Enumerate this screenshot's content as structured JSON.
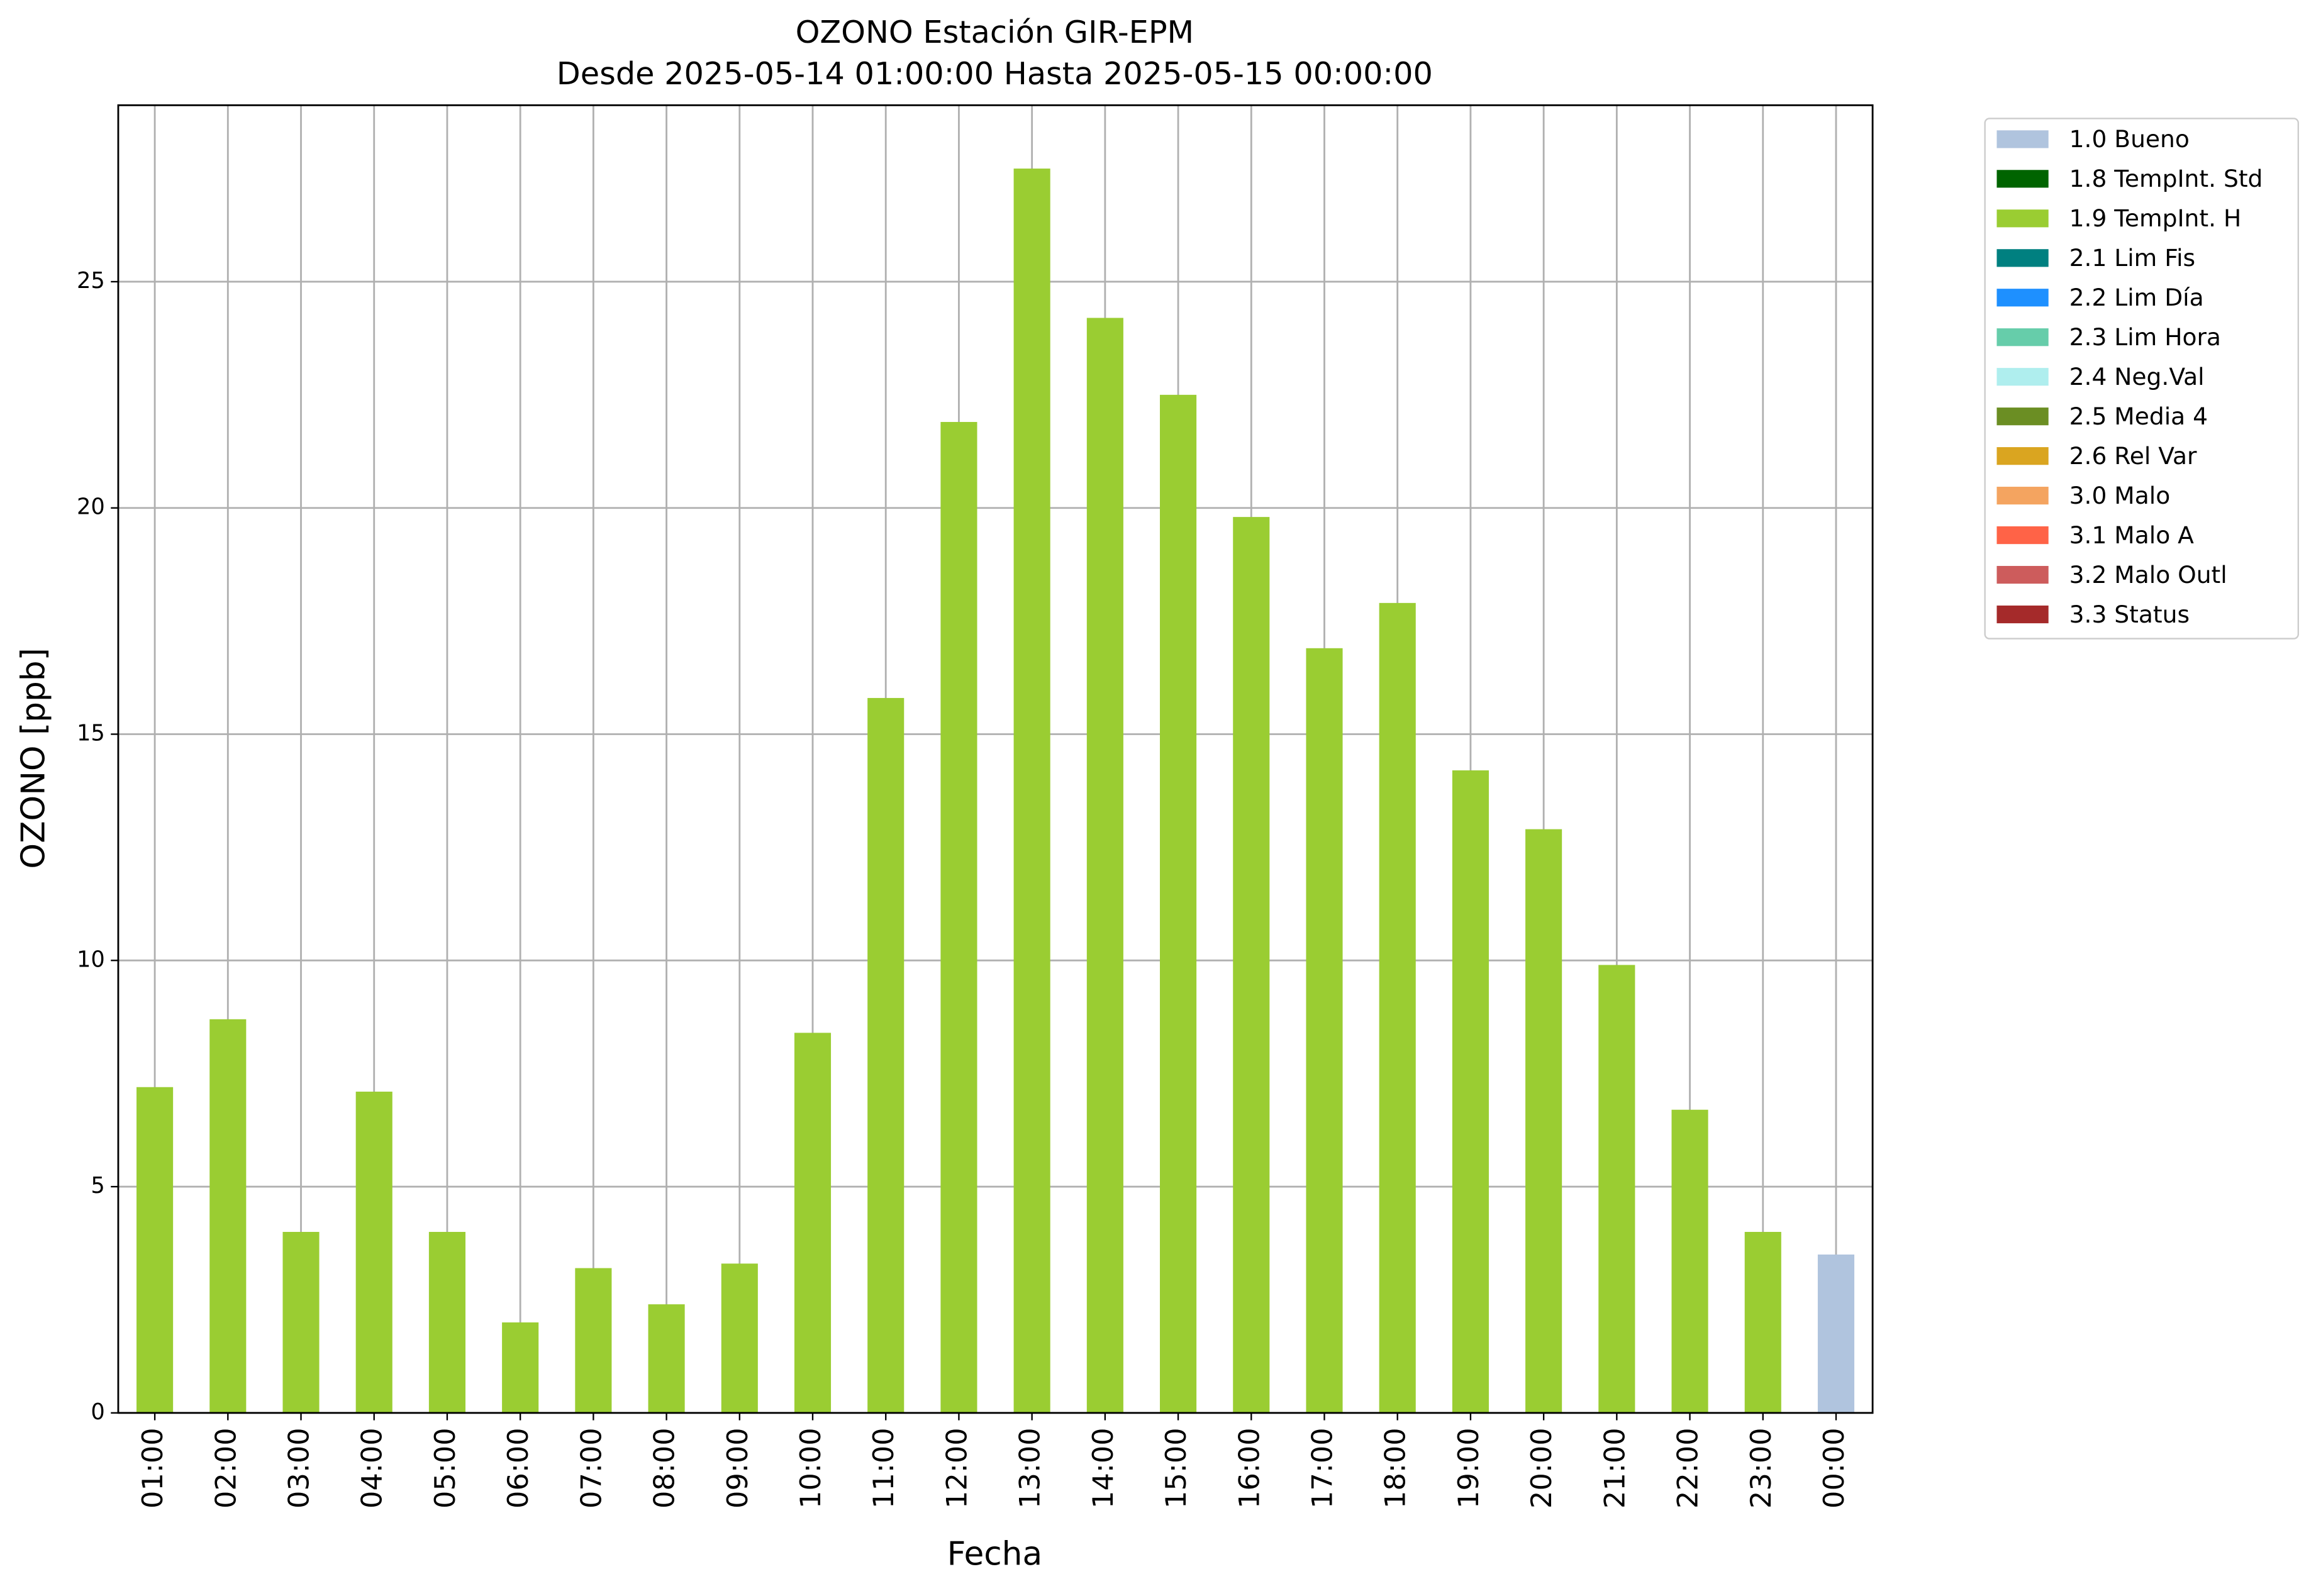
{
  "chart_data": {
    "type": "stacked_bar",
    "title": "OZONO Estación GIR-EPM",
    "subtitle": "Desde 2025-05-14 01:00:00 Hasta 2025-05-15 00:00:00",
    "x_label": "Fecha",
    "y_label": "OZONO [ppb]",
    "categories": [
      "01:00",
      "02:00",
      "03:00",
      "04:00",
      "05:00",
      "06:00",
      "07:00",
      "08:00",
      "09:00",
      "10:00",
      "11:00",
      "12:00",
      "13:00",
      "14:00",
      "15:00",
      "16:00",
      "17:00",
      "18:00",
      "19:00",
      "20:00",
      "21:00",
      "22:00",
      "23:00",
      "00:00"
    ],
    "series": [
      {
        "name": "1.0 Bueno",
        "color": "#b0c4de",
        "values": [
          null,
          null,
          null,
          null,
          null,
          null,
          null,
          null,
          null,
          null,
          null,
          null,
          null,
          null,
          null,
          null,
          null,
          null,
          null,
          null,
          null,
          null,
          null,
          3.5
        ]
      },
      {
        "name": "1.8 TempInt. Std",
        "color": "#006400",
        "values": [
          null,
          null,
          null,
          null,
          null,
          null,
          null,
          null,
          null,
          null,
          null,
          null,
          null,
          null,
          null,
          null,
          null,
          null,
          null,
          null,
          null,
          null,
          null,
          null
        ]
      },
      {
        "name": "1.9 TempInt. H",
        "color": "#9acd32",
        "values": [
          7.2,
          8.7,
          4.0,
          7.1,
          4.0,
          2.0,
          3.2,
          2.4,
          3.3,
          8.4,
          15.8,
          21.9,
          27.5,
          24.2,
          22.5,
          19.8,
          16.9,
          17.9,
          14.2,
          12.9,
          9.9,
          6.7,
          4.0,
          null
        ]
      },
      {
        "name": "2.1 Lim Fis",
        "color": "#008080",
        "values": [
          null,
          null,
          null,
          null,
          null,
          null,
          null,
          null,
          null,
          null,
          null,
          null,
          null,
          null,
          null,
          null,
          null,
          null,
          null,
          null,
          null,
          null,
          null,
          null
        ]
      },
      {
        "name": "2.2 Lim Día",
        "color": "#1e90ff",
        "values": [
          null,
          null,
          null,
          null,
          null,
          null,
          null,
          null,
          null,
          null,
          null,
          null,
          null,
          null,
          null,
          null,
          null,
          null,
          null,
          null,
          null,
          null,
          null,
          null
        ]
      },
      {
        "name": "2.3 Lim Hora",
        "color": "#66cdaa",
        "values": [
          null,
          null,
          null,
          null,
          null,
          null,
          null,
          null,
          null,
          null,
          null,
          null,
          null,
          null,
          null,
          null,
          null,
          null,
          null,
          null,
          null,
          null,
          null,
          null
        ]
      },
      {
        "name": "2.4 Neg.Val",
        "color": "#afeeee",
        "values": [
          null,
          null,
          null,
          null,
          null,
          null,
          null,
          null,
          null,
          null,
          null,
          null,
          null,
          null,
          null,
          null,
          null,
          null,
          null,
          null,
          null,
          null,
          null,
          null
        ]
      },
      {
        "name": "2.5 Media 4",
        "color": "#6b8e23",
        "values": [
          null,
          null,
          null,
          null,
          null,
          null,
          null,
          null,
          null,
          null,
          null,
          null,
          null,
          null,
          null,
          null,
          null,
          null,
          null,
          null,
          null,
          null,
          null,
          null
        ]
      },
      {
        "name": "2.6 Rel Var",
        "color": "#daa520",
        "values": [
          null,
          null,
          null,
          null,
          null,
          null,
          null,
          null,
          null,
          null,
          null,
          null,
          null,
          null,
          null,
          null,
          null,
          null,
          null,
          null,
          null,
          null,
          null,
          null
        ]
      },
      {
        "name": "3.0 Malo",
        "color": "#f4a460",
        "values": [
          null,
          null,
          null,
          null,
          null,
          null,
          null,
          null,
          null,
          null,
          null,
          null,
          null,
          null,
          null,
          null,
          null,
          null,
          null,
          null,
          null,
          null,
          null,
          null
        ]
      },
      {
        "name": "3.1 Malo A",
        "color": "#ff6347",
        "values": [
          null,
          null,
          null,
          null,
          null,
          null,
          null,
          null,
          null,
          null,
          null,
          null,
          null,
          null,
          null,
          null,
          null,
          null,
          null,
          null,
          null,
          null,
          null,
          null
        ]
      },
      {
        "name": "3.2 Malo Outl",
        "color": "#cd5c5c",
        "values": [
          null,
          null,
          null,
          null,
          null,
          null,
          null,
          null,
          null,
          null,
          null,
          null,
          null,
          null,
          null,
          null,
          null,
          null,
          null,
          null,
          null,
          null,
          null,
          null
        ]
      },
      {
        "name": "3.3 Status",
        "color": "#a52a2a",
        "values": [
          null,
          null,
          null,
          null,
          null,
          null,
          null,
          null,
          null,
          null,
          null,
          null,
          null,
          null,
          null,
          null,
          null,
          null,
          null,
          null,
          null,
          null,
          null,
          null
        ]
      }
    ],
    "ylim": [
      0,
      28.9
    ],
    "yticks": [
      0,
      5,
      10,
      15,
      20,
      25
    ],
    "grid": true,
    "legend": "outside-right"
  }
}
